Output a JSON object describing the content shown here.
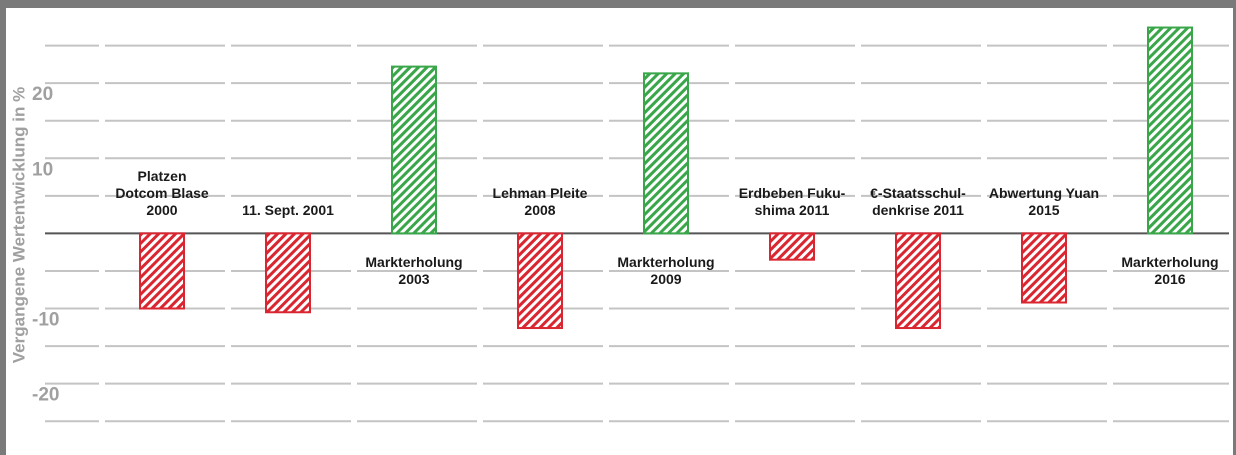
{
  "chart_data": {
    "type": "bar",
    "y_axis_label": "Vergangene Wertentwicklung in %",
    "categories": [
      [
        "Platzen",
        "Dotcom Blase",
        "2000"
      ],
      [
        "11. Sept. 2001"
      ],
      [
        "Markterholung",
        "2003"
      ],
      [
        "Lehman Pleite",
        "2008"
      ],
      [
        "Markterholung",
        "2009"
      ],
      [
        "Erdbeben Fuku-",
        "shima 2011"
      ],
      [
        "€-Staatsschul-",
        "denkrise 2011"
      ],
      [
        "Abwertung Yuan",
        "2015"
      ],
      [
        "Markterholung",
        "2016"
      ]
    ],
    "values": [
      -10.0,
      -10.5,
      22.2,
      -12.6,
      21.3,
      -3.5,
      -12.6,
      -9.2,
      27.4
    ],
    "positive_color": "#3aa64a",
    "negative_color": "#d92630",
    "ylim": [
      -29.5,
      30
    ],
    "yticks": [
      -20,
      -10,
      10,
      20
    ],
    "minor_yticks": [
      -25,
      -15,
      -5,
      5,
      15,
      25
    ],
    "grid": true
  }
}
